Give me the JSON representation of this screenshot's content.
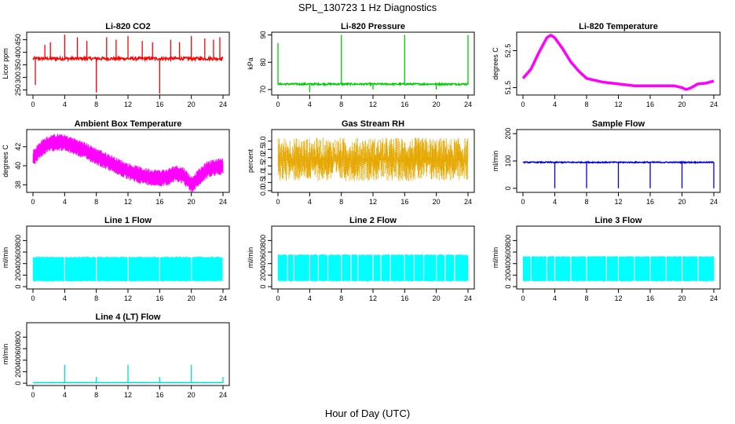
{
  "title": "SPL_130723  1 Hz Diagnostics",
  "xlabel": "Hour of Day (UTC)",
  "chart_data": [
    {
      "type": "line",
      "title": "Li-820 CO2",
      "ylabel": "Licor ppm",
      "color": "#ff0000",
      "xlim": [
        0,
        24
      ],
      "ylim": [
        230,
        480
      ],
      "yticks": [
        250,
        300,
        350,
        400,
        450
      ],
      "xticks": [
        0,
        4,
        8,
        12,
        16,
        20,
        24
      ],
      "baseline": 375,
      "noise": 6,
      "spikes": [
        {
          "x": 0.3,
          "y": 270
        },
        {
          "x": 1.5,
          "y": 430
        },
        {
          "x": 2.2,
          "y": 440
        },
        {
          "x": 4.0,
          "y": 470
        },
        {
          "x": 5.6,
          "y": 460
        },
        {
          "x": 6.8,
          "y": 445
        },
        {
          "x": 8.0,
          "y": 240
        },
        {
          "x": 9.3,
          "y": 460
        },
        {
          "x": 10.5,
          "y": 450
        },
        {
          "x": 12.0,
          "y": 465
        },
        {
          "x": 13.8,
          "y": 445
        },
        {
          "x": 15.1,
          "y": 440
        },
        {
          "x": 16.0,
          "y": 235
        },
        {
          "x": 17.4,
          "y": 450
        },
        {
          "x": 18.5,
          "y": 440
        },
        {
          "x": 20.0,
          "y": 465
        },
        {
          "x": 21.7,
          "y": 455
        },
        {
          "x": 22.8,
          "y": 450
        },
        {
          "x": 23.6,
          "y": 460
        }
      ]
    },
    {
      "type": "line",
      "title": "Li-820 Pressure",
      "ylabel": "kPa",
      "color": "#00cc00",
      "xlim": [
        0,
        24
      ],
      "ylim": [
        68,
        91
      ],
      "yticks": [
        70,
        80,
        90
      ],
      "xticks": [
        0,
        4,
        8,
        12,
        16,
        20,
        24
      ],
      "baseline": 72,
      "noise": 0.3,
      "spikes": [
        {
          "x": 0.0,
          "y": 87
        },
        {
          "x": 4.0,
          "y": 69
        },
        {
          "x": 8.0,
          "y": 90
        },
        {
          "x": 12.0,
          "y": 70
        },
        {
          "x": 16.0,
          "y": 90
        },
        {
          "x": 20.0,
          "y": 70
        },
        {
          "x": 24.0,
          "y": 90
        }
      ]
    },
    {
      "type": "line",
      "title": "Li-820 Temperature",
      "ylabel": "degrees C",
      "color": "#ff00ff",
      "xlim": [
        0,
        24
      ],
      "ylim": [
        51.3,
        53.0
      ],
      "yticks": [
        51.5,
        52.5
      ],
      "xticks": [
        0,
        4,
        8,
        12,
        16,
        20,
        24
      ],
      "x": [
        0,
        1,
        2,
        3,
        3.5,
        4,
        5,
        6,
        7,
        8,
        10,
        12,
        14,
        16,
        18,
        19,
        20,
        20.5,
        21,
        22,
        23,
        24
      ],
      "y": [
        51.75,
        52.0,
        52.45,
        52.85,
        52.92,
        52.85,
        52.55,
        52.2,
        51.95,
        51.75,
        51.65,
        51.6,
        51.55,
        51.55,
        51.55,
        51.55,
        51.5,
        51.45,
        51.48,
        51.6,
        51.62,
        51.68
      ]
    },
    {
      "type": "line",
      "title": "Ambient Box Temperature",
      "ylabel": "degrees C",
      "color": "#ff00ff",
      "xlim": [
        0,
        24
      ],
      "ylim": [
        37.2,
        43.8
      ],
      "yticks": [
        38,
        40,
        42
      ],
      "xticks": [
        0,
        4,
        8,
        12,
        16,
        20,
        24
      ],
      "x": [
        0,
        1,
        2,
        3,
        4,
        6,
        8,
        10,
        12,
        14,
        16,
        17,
        18,
        19,
        20,
        21,
        22,
        23,
        24
      ],
      "y": [
        40.8,
        41.8,
        42.3,
        42.5,
        42.4,
        41.8,
        41.0,
        40.2,
        39.4,
        38.9,
        38.7,
        38.8,
        39.2,
        39.0,
        38.0,
        38.8,
        39.6,
        39.8,
        40.0
      ],
      "band": 0.9
    },
    {
      "type": "line",
      "title": "Gas Stream RH",
      "ylabel": "percent",
      "color": "#e6a800",
      "xlim": [
        0,
        24
      ],
      "ylim": [
        -0.1,
        3.7
      ],
      "yticks": [
        0.0,
        0.5,
        1.0,
        1.5,
        2.0,
        2.5,
        3.0
      ],
      "xticks": [
        0,
        4,
        8,
        12,
        16,
        20,
        24
      ],
      "baseline": 1.9,
      "band": 1.1
    },
    {
      "type": "line",
      "title": "Sample Flow",
      "ylabel": "ml/min",
      "color": "#0000dd",
      "xlim": [
        0,
        24
      ],
      "ylim": [
        -15,
        215
      ],
      "yticks": [
        0,
        100,
        200
      ],
      "xticks": [
        0,
        4,
        8,
        12,
        16,
        20,
        24
      ],
      "baseline": 95,
      "noise": 2,
      "spikes": [
        {
          "x": 4.0,
          "y": 0
        },
        {
          "x": 8.0,
          "y": 0
        },
        {
          "x": 12.0,
          "y": 0
        },
        {
          "x": 16.0,
          "y": 0
        },
        {
          "x": 20.0,
          "y": 0
        },
        {
          "x": 24.0,
          "y": 0
        }
      ]
    },
    {
      "type": "area",
      "title": "Line 1 Flow",
      "ylabel": "ml/min",
      "color": "#00ffff",
      "xlim": [
        0,
        24
      ],
      "ylim": [
        -40,
        1050
      ],
      "yticks": [
        0,
        200,
        400,
        600,
        800
      ],
      "xticks": [
        0,
        4,
        8,
        12,
        16,
        20,
        24
      ],
      "low": 100,
      "high": 510,
      "gaps": [
        4.0,
        8.0,
        12.0,
        16.0,
        20.0,
        24.0
      ]
    },
    {
      "type": "area",
      "title": "Line 2 Flow",
      "ylabel": "ml/min",
      "color": "#00ffff",
      "xlim": [
        0,
        24
      ],
      "ylim": [
        -40,
        1050
      ],
      "yticks": [
        0,
        200,
        400,
        600,
        800
      ],
      "xticks": [
        0,
        4,
        8,
        12,
        16,
        20,
        24
      ],
      "low": 100,
      "high": 550,
      "gaps": [
        1.2,
        2.0,
        4.0,
        5.1,
        6.3,
        8.0,
        9.2,
        10.1,
        12.0,
        13.0,
        14.2,
        16.0,
        17.2,
        18.4,
        20.0,
        21.1,
        22.3
      ]
    },
    {
      "type": "area",
      "title": "Line 3 Flow",
      "ylabel": "ml/min",
      "color": "#00ffff",
      "xlim": [
        0,
        24
      ],
      "ylim": [
        -40,
        1050
      ],
      "yticks": [
        0,
        200,
        400,
        600,
        800
      ],
      "xticks": [
        0,
        4,
        8,
        12,
        16,
        20,
        24
      ],
      "low": 100,
      "high": 520,
      "gaps": [
        1.0,
        3.0,
        4.0,
        6.0,
        8.0,
        10.5,
        12.0,
        14.0,
        16.0,
        18.0,
        20.0,
        22.0
      ]
    },
    {
      "type": "line",
      "title": "Line 4 (LT) Flow",
      "ylabel": "ml/min",
      "color": "#00dddd",
      "xlim": [
        0,
        24
      ],
      "ylim": [
        -40,
        1050
      ],
      "yticks": [
        0,
        200,
        400,
        600,
        800
      ],
      "xticks": [
        0,
        4,
        8,
        12,
        16,
        20,
        24
      ],
      "baseline": 10,
      "noise": 2,
      "spikes": [
        {
          "x": 4.0,
          "y": 320
        },
        {
          "x": 8.0,
          "y": 110
        },
        {
          "x": 12.0,
          "y": 320
        },
        {
          "x": 16.0,
          "y": 110
        },
        {
          "x": 20.0,
          "y": 320
        },
        {
          "x": 24.0,
          "y": 110
        }
      ]
    }
  ]
}
